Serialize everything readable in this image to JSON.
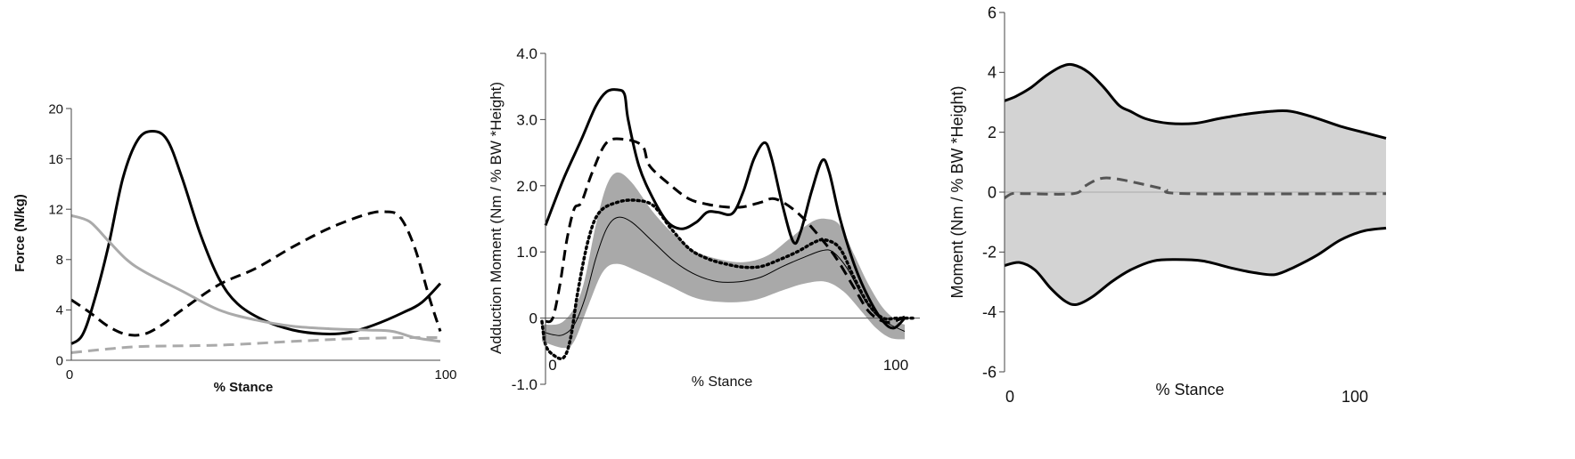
{
  "chart_data": [
    {
      "type": "line",
      "ylabel": "Force (N/kg)",
      "xlabel": "% Stance",
      "xlim": [
        0,
        100
      ],
      "ylim": [
        0,
        20
      ],
      "yticks": [
        "0",
        "4",
        "8",
        "12",
        "16",
        "20"
      ],
      "xticks": [
        "0",
        "100"
      ],
      "grid": false,
      "series": [
        {
          "style": "solid",
          "color": "#000000",
          "points": [
            [
              0,
              1.3
            ],
            [
              3,
              2
            ],
            [
              6,
              4.5
            ],
            [
              10,
              9
            ],
            [
              14,
              14.5
            ],
            [
              18,
              17.5
            ],
            [
              22,
              18.2
            ],
            [
              26,
              17.5
            ],
            [
              30,
              14.5
            ],
            [
              35,
              10
            ],
            [
              40,
              6.5
            ],
            [
              45,
              4.5
            ],
            [
              52,
              3.2
            ],
            [
              60,
              2.4
            ],
            [
              68,
              2.1
            ],
            [
              75,
              2.2
            ],
            [
              82,
              2.8
            ],
            [
              90,
              3.8
            ],
            [
              95,
              4.6
            ],
            [
              100,
              6.1
            ]
          ]
        },
        {
          "style": "dashed",
          "color": "#000000",
          "points": [
            [
              0,
              4.8
            ],
            [
              5,
              3.8
            ],
            [
              10,
              2.7
            ],
            [
              15,
              2.05
            ],
            [
              20,
              2.1
            ],
            [
              25,
              2.9
            ],
            [
              30,
              4
            ],
            [
              40,
              6
            ],
            [
              50,
              7.3
            ],
            [
              60,
              9
            ],
            [
              70,
              10.5
            ],
            [
              80,
              11.6
            ],
            [
              85,
              11.8
            ],
            [
              89,
              11.4
            ],
            [
              93,
              9
            ],
            [
              97,
              5
            ],
            [
              100,
              2.3
            ]
          ]
        },
        {
          "style": "solid",
          "color": "#aaaaaa",
          "points": [
            [
              0,
              11.5
            ],
            [
              5,
              11
            ],
            [
              10,
              9.5
            ],
            [
              15,
              8
            ],
            [
              20,
              7
            ],
            [
              30,
              5.5
            ],
            [
              40,
              4
            ],
            [
              50,
              3.2
            ],
            [
              60,
              2.7
            ],
            [
              70,
              2.5
            ],
            [
              80,
              2.4
            ],
            [
              87,
              2.3
            ],
            [
              93,
              1.8
            ],
            [
              100,
              1.5
            ]
          ]
        },
        {
          "style": "dashed",
          "color": "#aaaaaa",
          "points": [
            [
              0,
              0.6
            ],
            [
              10,
              0.9
            ],
            [
              20,
              1.1
            ],
            [
              40,
              1.2
            ],
            [
              60,
              1.5
            ],
            [
              75,
              1.7
            ],
            [
              90,
              1.8
            ],
            [
              100,
              1.8
            ]
          ]
        }
      ]
    },
    {
      "type": "line",
      "ylabel": "Adduction Moment (Nm / % BW *Height)",
      "xlabel": "% Stance",
      "xlim": [
        0,
        100
      ],
      "ylim": [
        -1.0,
        4.0
      ],
      "yticks": [
        "-1.0",
        "0",
        "1.0",
        "2.0",
        "3.0",
        "4.0"
      ],
      "xticks": [
        "0",
        "100"
      ],
      "grid": false,
      "band": {
        "color": "#a9a9a9",
        "upper": [
          [
            -1,
            -0.1
          ],
          [
            5,
            -0.05
          ],
          [
            10,
            0.4
          ],
          [
            14,
            1.4
          ],
          [
            17,
            2.0
          ],
          [
            20,
            2.2
          ],
          [
            24,
            2.05
          ],
          [
            30,
            1.6
          ],
          [
            36,
            1.25
          ],
          [
            42,
            1.0
          ],
          [
            50,
            0.87
          ],
          [
            56,
            0.85
          ],
          [
            62,
            0.95
          ],
          [
            68,
            1.2
          ],
          [
            74,
            1.45
          ],
          [
            78,
            1.5
          ],
          [
            82,
            1.4
          ],
          [
            86,
            0.95
          ],
          [
            90,
            0.5
          ],
          [
            94,
            0.15
          ],
          [
            98,
            -0.05
          ],
          [
            100,
            -0.1
          ]
        ],
        "lower": [
          [
            -1,
            -0.35
          ],
          [
            5,
            -0.45
          ],
          [
            8,
            -0.35
          ],
          [
            12,
            0.2
          ],
          [
            16,
            0.7
          ],
          [
            20,
            0.82
          ],
          [
            26,
            0.7
          ],
          [
            34,
            0.5
          ],
          [
            42,
            0.3
          ],
          [
            50,
            0.24
          ],
          [
            58,
            0.27
          ],
          [
            66,
            0.42
          ],
          [
            72,
            0.52
          ],
          [
            78,
            0.55
          ],
          [
            83,
            0.4
          ],
          [
            88,
            0.1
          ],
          [
            92,
            -0.15
          ],
          [
            96,
            -0.3
          ],
          [
            100,
            -0.32
          ]
        ]
      },
      "series": [
        {
          "style": "thin",
          "color": "#000000",
          "points": [
            [
              -1,
              -0.2
            ],
            [
              2,
              -0.25
            ],
            [
              5,
              -0.25
            ],
            [
              8,
              -0.1
            ],
            [
              11,
              0.3
            ],
            [
              14,
              0.9
            ],
            [
              17,
              1.35
            ],
            [
              20,
              1.52
            ],
            [
              24,
              1.45
            ],
            [
              30,
              1.15
            ],
            [
              36,
              0.85
            ],
            [
              42,
              0.65
            ],
            [
              48,
              0.55
            ],
            [
              54,
              0.55
            ],
            [
              60,
              0.62
            ],
            [
              66,
              0.78
            ],
            [
              72,
              0.92
            ],
            [
              77,
              1.02
            ],
            [
              80,
              1.0
            ],
            [
              84,
              0.75
            ],
            [
              88,
              0.35
            ],
            [
              92,
              0.05
            ],
            [
              96,
              -0.1
            ],
            [
              100,
              -0.2
            ]
          ]
        },
        {
          "style": "solid",
          "color": "#000000",
          "points": [
            [
              0,
              1.4
            ],
            [
              5,
              2.1
            ],
            [
              10,
              2.7
            ],
            [
              14,
              3.2
            ],
            [
              17,
              3.42
            ],
            [
              20,
              3.45
            ],
            [
              22,
              3.38
            ],
            [
              23,
              3.0
            ],
            [
              26,
              2.3
            ],
            [
              30,
              1.8
            ],
            [
              34,
              1.45
            ],
            [
              38,
              1.35
            ],
            [
              42,
              1.45
            ],
            [
              45,
              1.6
            ],
            [
              48,
              1.6
            ],
            [
              52,
              1.58
            ],
            [
              55,
              1.9
            ],
            [
              58,
              2.4
            ],
            [
              61,
              2.65
            ],
            [
              63,
              2.4
            ],
            [
              66,
              1.7
            ],
            [
              69,
              1.15
            ],
            [
              71,
              1.3
            ],
            [
              74,
              1.9
            ],
            [
              77,
              2.38
            ],
            [
              79,
              2.2
            ],
            [
              82,
              1.5
            ],
            [
              86,
              0.8
            ],
            [
              90,
              0.3
            ],
            [
              94,
              -0.05
            ],
            [
              97,
              -0.15
            ],
            [
              100,
              0
            ]
          ]
        },
        {
          "style": "dashed",
          "color": "#000000",
          "points": [
            [
              0,
              -0.05
            ],
            [
              2,
              0
            ],
            [
              4,
              0.5
            ],
            [
              6,
              1.2
            ],
            [
              8,
              1.65
            ],
            [
              10,
              1.75
            ],
            [
              13,
              2.2
            ],
            [
              17,
              2.65
            ],
            [
              22,
              2.7
            ],
            [
              27,
              2.6
            ],
            [
              29,
              2.3
            ],
            [
              35,
              2.0
            ],
            [
              40,
              1.8
            ],
            [
              45,
              1.72
            ],
            [
              50,
              1.68
            ],
            [
              55,
              1.68
            ],
            [
              60,
              1.75
            ],
            [
              64,
              1.8
            ],
            [
              70,
              1.6
            ],
            [
              76,
              1.25
            ],
            [
              81,
              0.9
            ],
            [
              86,
              0.45
            ],
            [
              90,
              0.1
            ],
            [
              94,
              -0.05
            ],
            [
              97,
              -0.05
            ],
            [
              100,
              0.02
            ]
          ]
        },
        {
          "style": "dotted",
          "color": "#000000",
          "points": [
            [
              -1,
              -0.05
            ],
            [
              0,
              -0.4
            ],
            [
              2,
              -0.55
            ],
            [
              5,
              -0.6
            ],
            [
              7,
              -0.3
            ],
            [
              9,
              0.4
            ],
            [
              12,
              1.2
            ],
            [
              15,
              1.6
            ],
            [
              20,
              1.75
            ],
            [
              25,
              1.78
            ],
            [
              30,
              1.7
            ],
            [
              35,
              1.35
            ],
            [
              40,
              1.05
            ],
            [
              45,
              0.9
            ],
            [
              50,
              0.82
            ],
            [
              55,
              0.77
            ],
            [
              60,
              0.78
            ],
            [
              65,
              0.88
            ],
            [
              70,
              1.0
            ],
            [
              75,
              1.15
            ],
            [
              78,
              1.18
            ],
            [
              82,
              1.05
            ],
            [
              86,
              0.6
            ],
            [
              90,
              0.2
            ],
            [
              94,
              0
            ],
            [
              98,
              0
            ],
            [
              103,
              0
            ]
          ]
        }
      ]
    },
    {
      "type": "line",
      "ylabel": "Moment (Nm / % BW *Height)",
      "xlabel": "% Stance",
      "xlim": [
        0,
        100
      ],
      "ylim": [
        -6,
        6
      ],
      "yticks": [
        "-6",
        "-4",
        "-2",
        "0",
        "2",
        "4",
        "6"
      ],
      "xticks": [
        "0",
        "100"
      ],
      "grid": false,
      "band": {
        "color": "#d3d3d3",
        "upper": [
          [
            0,
            3.05
          ],
          [
            3,
            3.2
          ],
          [
            7,
            3.5
          ],
          [
            11,
            3.9
          ],
          [
            15,
            4.2
          ],
          [
            18,
            4.25
          ],
          [
            22,
            4.0
          ],
          [
            26,
            3.5
          ],
          [
            30,
            2.9
          ],
          [
            33,
            2.7
          ],
          [
            37,
            2.45
          ],
          [
            43,
            2.3
          ],
          [
            50,
            2.3
          ],
          [
            56,
            2.45
          ],
          [
            63,
            2.6
          ],
          [
            70,
            2.7
          ],
          [
            75,
            2.7
          ],
          [
            81,
            2.5
          ],
          [
            88,
            2.2
          ],
          [
            94,
            2.0
          ],
          [
            100,
            1.8
          ]
        ],
        "lower": [
          [
            0,
            -2.45
          ],
          [
            4,
            -2.35
          ],
          [
            8,
            -2.6
          ],
          [
            12,
            -3.2
          ],
          [
            16,
            -3.65
          ],
          [
            19,
            -3.75
          ],
          [
            23,
            -3.5
          ],
          [
            28,
            -3.0
          ],
          [
            33,
            -2.6
          ],
          [
            39,
            -2.3
          ],
          [
            45,
            -2.25
          ],
          [
            52,
            -2.3
          ],
          [
            60,
            -2.55
          ],
          [
            66,
            -2.7
          ],
          [
            71,
            -2.75
          ],
          [
            76,
            -2.5
          ],
          [
            82,
            -2.1
          ],
          [
            88,
            -1.6
          ],
          [
            94,
            -1.3
          ],
          [
            100,
            -1.2
          ]
        ]
      },
      "series": [
        {
          "style": "dashed",
          "color": "#555555",
          "points": [
            [
              0,
              -0.2
            ],
            [
              2,
              -0.05
            ],
            [
              5,
              -0.05
            ],
            [
              18,
              -0.05
            ],
            [
              21,
              0.2
            ],
            [
              25,
              0.45
            ],
            [
              29,
              0.45
            ],
            [
              35,
              0.3
            ],
            [
              42,
              0.1
            ],
            [
              48,
              -0.05
            ],
            [
              100,
              -0.05
            ]
          ]
        }
      ]
    }
  ]
}
